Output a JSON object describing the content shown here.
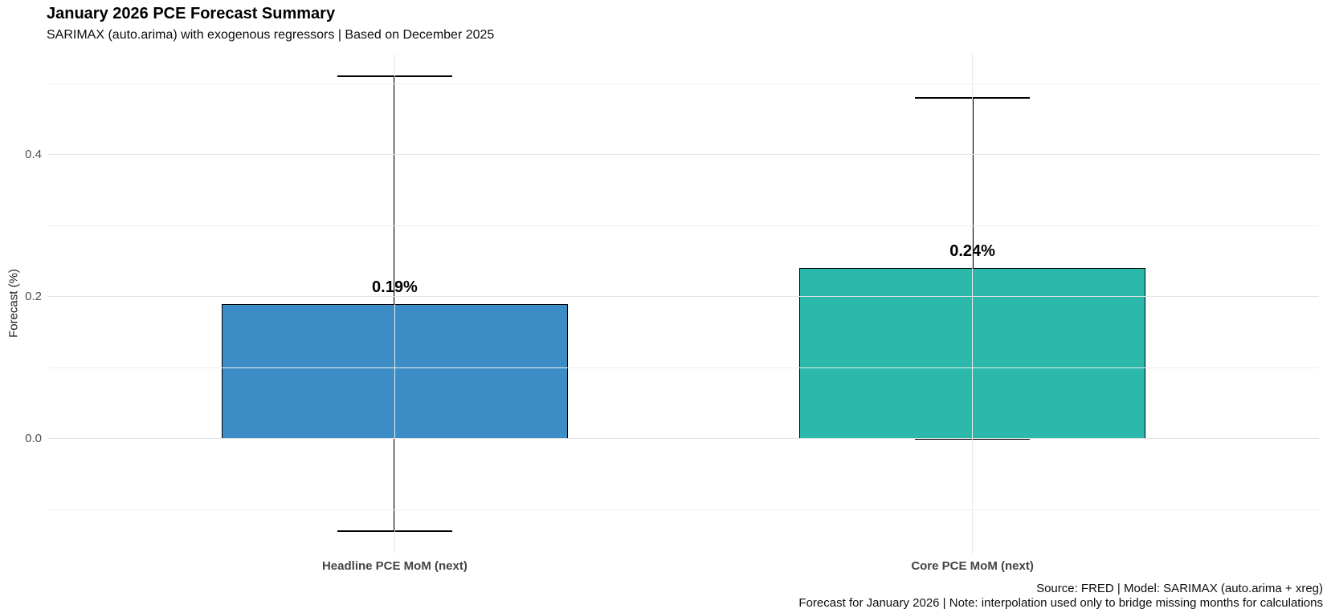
{
  "chart_data": {
    "type": "bar",
    "title": "January 2026 PCE Forecast Summary",
    "subtitle": "SARIMAX (auto.arima) with exogenous regressors | Based on December 2025",
    "ylabel": "Forecast (%)",
    "caption_line1": "Source: FRED | Model: SARIMAX (auto.arima + xreg)",
    "caption_line2": "Forecast for January 2026 | Note: interpolation used only to bridge missing months for calculations",
    "categories": [
      "Headline PCE MoM (next)",
      "Core PCE MoM (next)"
    ],
    "values": [
      0.19,
      0.24
    ],
    "value_labels": [
      "0.19%",
      "0.24%"
    ],
    "error_low": [
      -0.13,
      0.0
    ],
    "error_high": [
      0.51,
      0.48
    ],
    "bar_colors": [
      "#3C8CC6",
      "#2AB9AB"
    ],
    "ytick_labels": [
      "0.0",
      "0.2",
      "0.4"
    ],
    "yticks_major": [
      0.0,
      0.2,
      0.4
    ],
    "yticks_minor": [
      -0.1,
      0.1,
      0.3,
      0.5
    ],
    "ylim": [
      -0.162,
      0.542
    ],
    "grid": "horizontal major and minor; faint vertical gridline at each category center",
    "legend": "none"
  },
  "colors": {
    "background": "#ffffff",
    "major_grid": "#e3e3e3",
    "minor_grid": "#efefef",
    "vertical_grid": "#e9e9e9",
    "bar_border": "#000000",
    "error_bar": "#000000",
    "tick_text": "#4d4d4d",
    "category_text": "#444444"
  }
}
